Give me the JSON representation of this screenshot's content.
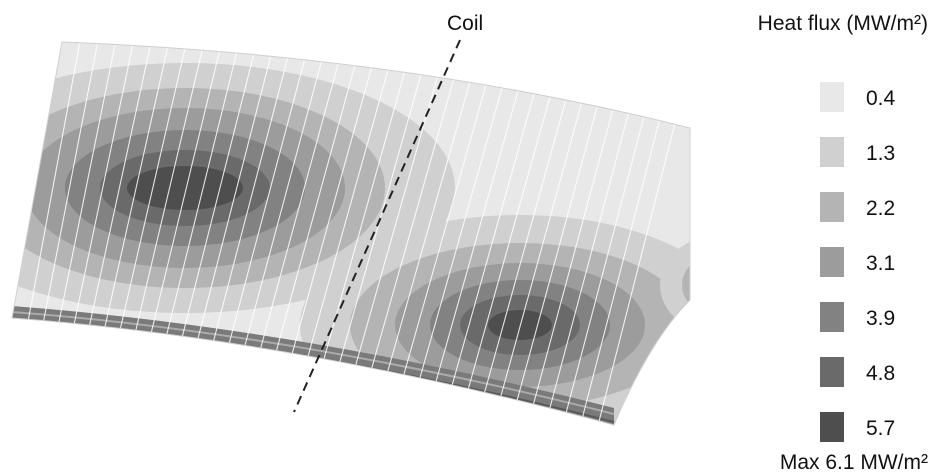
{
  "coil_label": "Coil",
  "legend": {
    "title": "Heat flux (MW/m²)",
    "levels": [
      {
        "value": "0.4",
        "color": "#e8e8e8"
      },
      {
        "value": "1.3",
        "color": "#d0d0d0"
      },
      {
        "value": "2.2",
        "color": "#b4b4b4"
      },
      {
        "value": "3.1",
        "color": "#9c9c9c"
      },
      {
        "value": "3.9",
        "color": "#828282"
      },
      {
        "value": "4.8",
        "color": "#6a6a6a"
      },
      {
        "value": "5.7",
        "color": "#4e4e4e"
      }
    ]
  },
  "max_label": "Max 6.1 MW/m²"
}
